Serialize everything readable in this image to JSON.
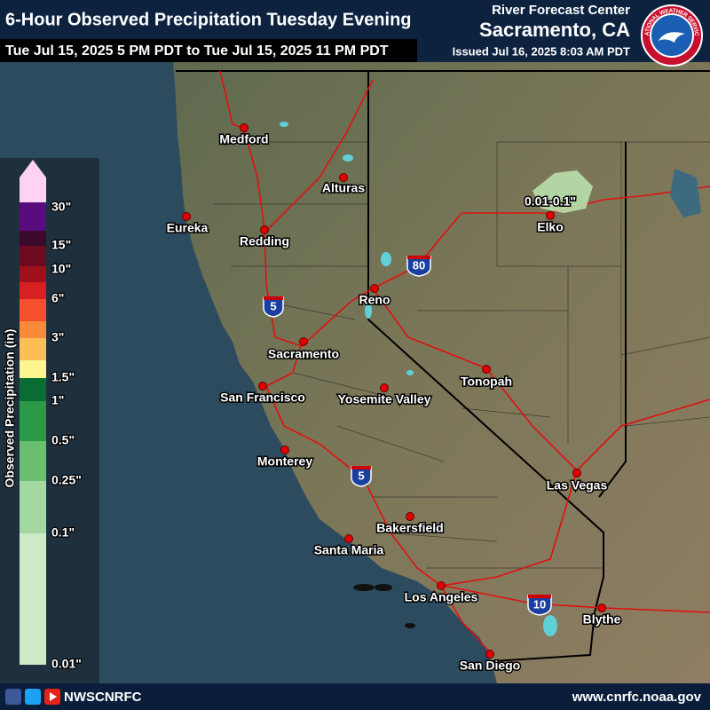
{
  "header": {
    "title": "6-Hour Observed Precipitation Tuesday Evening",
    "period": "Tue Jul 15, 2025 5 PM PDT to Tue Jul 15, 2025 11 PM PDT",
    "center_label": "River Forecast Center",
    "center_name": "Sacramento, CA",
    "issued": "Issued Jul 16, 2025 8:03 AM PDT",
    "logo_text": "NATIONAL WEATHER SERVICE"
  },
  "legend": {
    "title": "Observed Precipitation (in)",
    "labels": [
      "30\"",
      "15\"",
      "10\"",
      "6\"",
      "3\"",
      "1.5\"",
      "1\"",
      "0.5\"",
      "0.25\"",
      "0.1\"",
      "0.01\""
    ]
  },
  "map": {
    "cities": [
      "Medford",
      "Eureka",
      "Alturas",
      "Redding",
      "Reno",
      "Sacramento",
      "San Francisco",
      "Yosemite Valley",
      "Tonopah",
      "Elko",
      "Monterey",
      "Las Vegas",
      "Bakersfield",
      "Santa Maria",
      "Los Angeles",
      "Blythe",
      "San Diego"
    ],
    "highways": [
      "5",
      "80",
      "5",
      "10"
    ],
    "annotation": "0.01-0.1\""
  },
  "footer": {
    "social": "NWSCNRFC",
    "website": "www.cnrfc.noaa.gov"
  }
}
